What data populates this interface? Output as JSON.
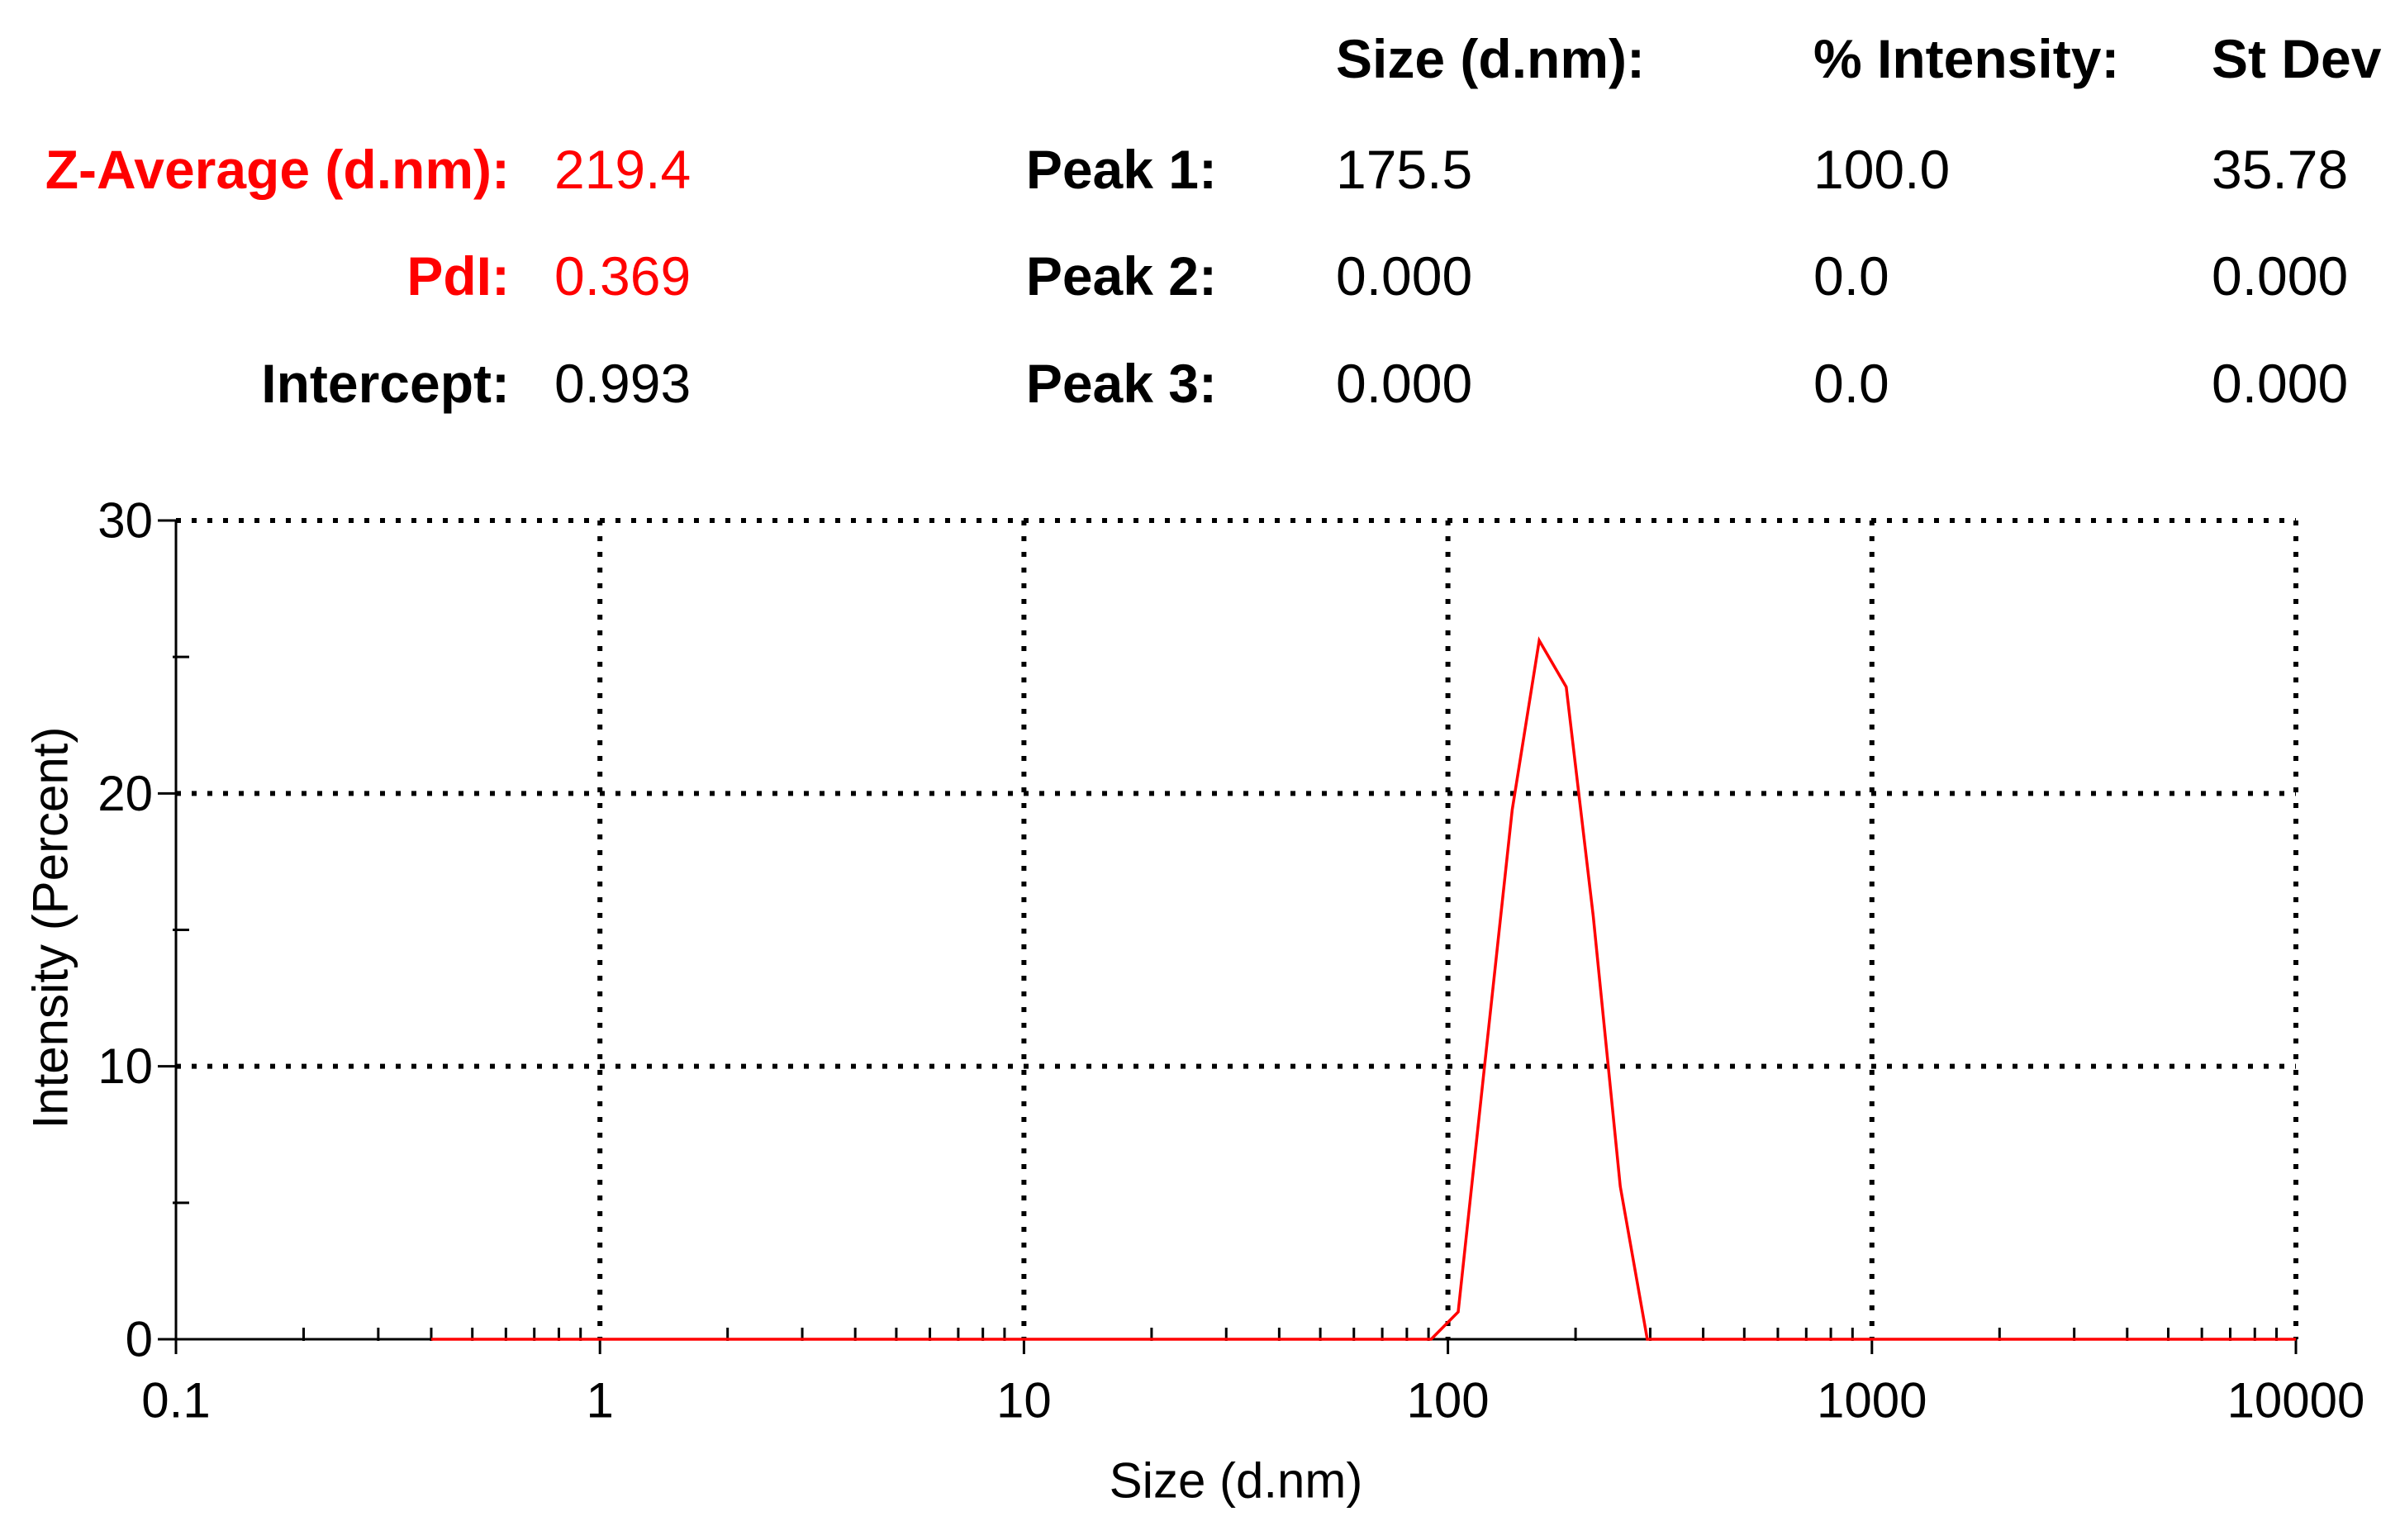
{
  "results": {
    "summary": [
      {
        "label": "Z-Average (d.nm):",
        "value": "219.4",
        "color": "#ff0000"
      },
      {
        "label": "PdI:",
        "value": "0.369",
        "color": "#ff0000"
      },
      {
        "label": "Intercept:",
        "value": "0.993",
        "color": "#000000"
      }
    ],
    "peak_table": {
      "headers": [
        "Size (d.nm):",
        "% Intensity:",
        "St Dev"
      ],
      "rows": [
        {
          "label": "Peak 1:",
          "size": "175.5",
          "intensity": "100.0",
          "st_dev": "35.78"
        },
        {
          "label": "Peak 2:",
          "size": "0.000",
          "intensity": "0.0",
          "st_dev": "0.000"
        },
        {
          "label": "Peak 3:",
          "size": "0.000",
          "intensity": "0.0",
          "st_dev": "0.000"
        }
      ]
    }
  },
  "chart_data": {
    "type": "line",
    "xlabel": "Size (d.nm)",
    "ylabel": "Intensity (Percent)",
    "xscale": "log",
    "xlim": [
      0.1,
      10000
    ],
    "ylim": [
      0,
      30
    ],
    "xticks": [
      0.1,
      1,
      10,
      100,
      1000,
      10000
    ],
    "xtick_labels": [
      "0.1",
      "1",
      "10",
      "100",
      "1000",
      "10000"
    ],
    "yticks": [
      0,
      10,
      20,
      30
    ],
    "ytick_labels": [
      "0",
      "10",
      "20",
      "30"
    ],
    "grid": true,
    "series": [
      {
        "color": "#ff0000",
        "x": [
          0.4,
          91.28,
          105.7,
          122.4,
          141.8,
          164.2,
          190.1,
          220.2,
          255.0,
          295.3,
          10000
        ],
        "y": [
          0,
          0,
          1.0,
          10.2,
          19.4,
          25.6,
          23.9,
          15.5,
          5.6,
          0,
          0
        ]
      }
    ]
  }
}
